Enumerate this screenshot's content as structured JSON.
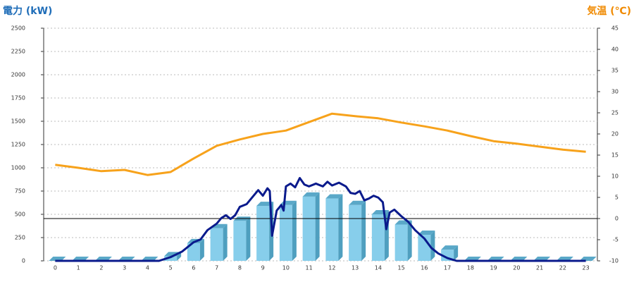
{
  "chart_data": {
    "type": "bar",
    "y_label": "電力 (kW)",
    "y2_label": "気温 (℃)",
    "categories": [
      "0",
      "1",
      "2",
      "3",
      "4",
      "5",
      "6",
      "7",
      "8",
      "9",
      "10",
      "11",
      "12",
      "13",
      "14",
      "15",
      "16",
      "17",
      "18",
      "19",
      "20",
      "21",
      "22",
      "23"
    ],
    "ylim": [
      0,
      2500
    ],
    "yticks": [
      0,
      250,
      500,
      750,
      1000,
      1250,
      1500,
      1750,
      2000,
      2250,
      2500
    ],
    "y2lim": [
      -10,
      45
    ],
    "y2ticks": [
      -10,
      -5,
      0,
      5,
      10,
      15,
      20,
      25,
      30,
      35,
      40,
      45
    ],
    "y2_hline": 0,
    "grid": true,
    "series": [
      {
        "type": "bar",
        "color": "#87ceeb",
        "values": [
          0,
          0,
          0,
          0,
          0,
          50,
          190,
          350,
          430,
          590,
          600,
          690,
          670,
          600,
          500,
          390,
          280,
          120,
          0,
          0,
          0,
          0,
          0,
          0
        ]
      },
      {
        "type": "line",
        "color": "#0a1a8c",
        "x": [
          0,
          4.5,
          5,
          5.5,
          6,
          6.3,
          6.6,
          7,
          7.2,
          7.4,
          7.6,
          7.8,
          8,
          8.3,
          8.6,
          8.8,
          9,
          9.2,
          9.3,
          9.4,
          9.6,
          9.8,
          9.9,
          10,
          10.2,
          10.4,
          10.6,
          10.8,
          11,
          11.3,
          11.6,
          11.8,
          12,
          12.3,
          12.6,
          12.8,
          13,
          13.2,
          13.4,
          13.6,
          13.8,
          14,
          14.2,
          14.35,
          14.5,
          14.7,
          15,
          15.3,
          15.6,
          16,
          16.3,
          16.6,
          17,
          17.4,
          18,
          23
        ],
        "values": [
          0,
          0,
          40,
          100,
          200,
          230,
          330,
          400,
          460,
          490,
          450,
          490,
          580,
          610,
          700,
          760,
          700,
          780,
          750,
          270,
          540,
          600,
          540,
          800,
          830,
          790,
          890,
          820,
          800,
          830,
          800,
          850,
          810,
          840,
          800,
          730,
          720,
          750,
          650,
          670,
          700,
          680,
          630,
          340,
          520,
          550,
          480,
          420,
          330,
          240,
          140,
          80,
          30,
          0,
          0,
          0
        ]
      },
      {
        "type": "line",
        "axis": "y2",
        "color": "#f7a21b",
        "values": [
          12.7,
          12,
          11.2,
          11.5,
          10.3,
          11,
          14.2,
          17.2,
          18.7,
          20,
          20.8,
          22.8,
          24.8,
          24.2,
          23.7,
          22.7,
          21.8,
          20.8,
          19.5,
          18.3,
          17.7,
          17,
          16.3,
          15.8
        ]
      }
    ]
  }
}
